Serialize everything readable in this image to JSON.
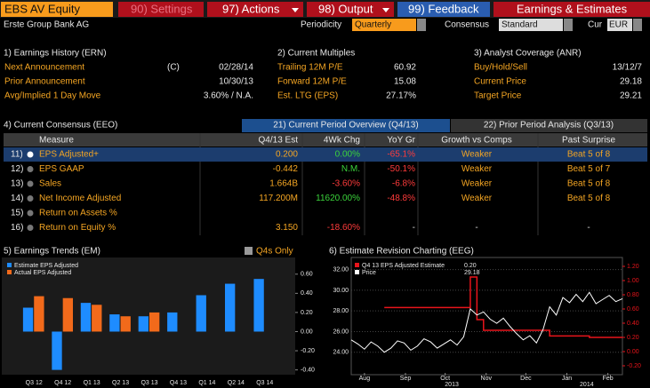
{
  "toolbar": {
    "ticker": "EBS AV Equity",
    "buttons": [
      "90) Settings",
      "97) Actions",
      "98) Output",
      "99) Feedback"
    ],
    "function_title": "Earnings & Estimates"
  },
  "company": "Erste Group Bank AG",
  "filters": {
    "periodicity_label": "Periodicity",
    "periodicity": "Quarterly",
    "consensus_label": "Consensus",
    "consensus": "Standard",
    "currency_label": "Cur",
    "currency": "EUR"
  },
  "earnings_history": {
    "title": "1) Earnings History (ERN)",
    "rows": [
      [
        "Next Announcement",
        "(C)",
        "02/28/14"
      ],
      [
        "Prior Announcement",
        "10/30/13"
      ],
      [
        "Avg/Implied 1 Day Move",
        "3.60% / N.A."
      ]
    ]
  },
  "current_multiples": {
    "title": "2) Current Multiples",
    "rows": [
      [
        "Trailing 12M P/E",
        "60.92"
      ],
      [
        "Forward 12M P/E",
        "15.08"
      ],
      [
        "Est. LTG (EPS)",
        "27.17%"
      ]
    ]
  },
  "analyst_coverage": {
    "title": "3) Analyst Coverage (ANR)",
    "rows": [
      [
        "Buy/Hold/Sell",
        "13/12/7"
      ],
      [
        "Current Price",
        "29.18"
      ],
      [
        "Target Price",
        "29.21"
      ]
    ]
  },
  "consensus": {
    "title": "4) Current Consensus (EEO)",
    "tabs": [
      "21) Current Period Overview (Q4/13)",
      "22) Prior Period Analysis (Q3/13)"
    ],
    "columns": [
      "Measure",
      "Q4/13 Est",
      "4Wk Chg",
      "YoY Gr",
      "Growth vs Comps",
      "Past Surprise"
    ],
    "rows": [
      [
        "11)",
        "EPS Adjusted+",
        "0.200",
        "0.00%",
        "-65.1%",
        "Weaker",
        "Beat 5 of 8"
      ],
      [
        "12)",
        "EPS GAAP",
        "-0.442",
        "N.M.",
        "-50.1%",
        "Weaker",
        "Beat 5 of 7"
      ],
      [
        "13)",
        "Sales",
        "1.664B",
        "-3.60%",
        "-6.8%",
        "Weaker",
        "Beat 5 of 8"
      ],
      [
        "14)",
        "Net Income Adjusted",
        "117.200M",
        "11620.00%",
        "-48.8%",
        "Weaker",
        "Beat 5 of 8"
      ],
      [
        "15)",
        "Return on Assets %"
      ],
      [
        "16)",
        "Return on Equity %",
        "3.150",
        "-18.60%",
        "-",
        "-",
        "-"
      ]
    ]
  },
  "earnings_trends": {
    "type": "bar",
    "title": "5) Earnings Trends (EM)",
    "toggle": "Q4s Only",
    "categories": [
      "Q3 12",
      "Q4 12",
      "Q1 13",
      "Q2 13",
      "Q3 13",
      "Q4 13",
      "Q1 14",
      "Q2 14",
      "Q3 14"
    ],
    "series": [
      {
        "name": "Estimate EPS Adjusted",
        "color": "#1e8cff",
        "values": [
          0.25,
          -0.4,
          0.3,
          0.18,
          0.16,
          0.2,
          0.38,
          0.5,
          0.55
        ]
      },
      {
        "name": "Actual EPS Adjusted",
        "color": "#f26a1b",
        "values": [
          0.37,
          0.35,
          0.28,
          0.16,
          0.2,
          null,
          null,
          null,
          null
        ]
      }
    ],
    "ylim": [
      -0.45,
      0.7
    ],
    "yticks": [
      {
        "value": 0.6,
        "label": "0.60"
      },
      {
        "value": 0.4,
        "label": "0.40"
      },
      {
        "value": 0.2,
        "label": "0.20"
      },
      {
        "value": 0,
        "label": "0.00"
      },
      {
        "value": -0.2,
        "label": "-0.20"
      },
      {
        "value": -0.4,
        "label": "-0.40"
      }
    ]
  },
  "revision_chart": {
    "type": "line",
    "title": "6) Estimate Revision Charting (EEG)",
    "x": [
      0,
      5,
      10,
      15,
      20,
      25,
      30,
      35,
      40,
      45,
      50,
      55,
      60,
      65,
      70,
      75,
      80,
      85,
      90,
      95,
      100,
      105,
      110,
      115,
      120,
      125,
      130,
      135,
      140,
      145,
      150,
      155,
      160,
      165,
      170,
      175,
      180,
      185,
      190,
      195,
      200,
      205
    ],
    "series": [
      {
        "name": "Q4 13 EPS Adjusted Estimate",
        "color": "#e8141b",
        "axis": "y2",
        "values": [
          null,
          null,
          null,
          null,
          null,
          0.62,
          0.62,
          0.62,
          0.62,
          0.62,
          0.62,
          0.62,
          0.62,
          0.62,
          0.62,
          0.62,
          0.62,
          0.62,
          1.05,
          0.45,
          0.3,
          0.3,
          0.3,
          0.3,
          0.3,
          0.3,
          0.3,
          0.3,
          0.3,
          0.3,
          0.22,
          0.22,
          0.22,
          0.22,
          0.22,
          0.22,
          0.2,
          0.2,
          0.2,
          0.2,
          0.2,
          0.2
        ]
      },
      {
        "name": "Price",
        "color": "#ffffff",
        "values": [
          25.2,
          24.8,
          24.3,
          25.0,
          24.6,
          24.0,
          24.4,
          25.1,
          24.9,
          24.2,
          24.6,
          25.3,
          25.0,
          24.4,
          24.8,
          25.2,
          24.7,
          25.5,
          28.2,
          27.6,
          27.9,
          27.2,
          26.8,
          27.3,
          26.5,
          25.8,
          25.2,
          25.6,
          24.9,
          26.2,
          28.4,
          27.6,
          29.3,
          28.8,
          29.6,
          28.9,
          29.8,
          28.7,
          29.1,
          29.5,
          28.9,
          29.18
        ]
      }
    ],
    "legend_values": [
      "0.20",
      "29.18"
    ],
    "xlim": [
      0,
      205
    ],
    "xticks": [
      {
        "value": 10,
        "label": "Aug"
      },
      {
        "value": 41,
        "label": "Sep"
      },
      {
        "value": 71,
        "label": "Oct"
      },
      {
        "value": 102,
        "label": "Nov"
      },
      {
        "value": 132,
        "label": "Dec"
      },
      {
        "value": 163,
        "label": "Jan"
      },
      {
        "value": 194,
        "label": "Feb"
      }
    ],
    "year_labels": [
      {
        "value": 76,
        "label": "2013"
      },
      {
        "value": 178,
        "label": "2014"
      }
    ],
    "ylim": [
      22,
      33
    ],
    "yticks": [
      {
        "value": 24,
        "label": "24.00"
      },
      {
        "value": 26,
        "label": "26.00"
      },
      {
        "value": 28,
        "label": "28.00"
      },
      {
        "value": 30,
        "label": "30.00"
      },
      {
        "value": 32,
        "label": "32.00"
      }
    ],
    "y2lim": [
      -0.3,
      1.3
    ],
    "y2ticks": [
      {
        "value": 1.2,
        "label": "1.20"
      },
      {
        "value": 1.0,
        "label": "1.00"
      },
      {
        "value": 0.8,
        "label": "0.80"
      },
      {
        "value": 0.6,
        "label": "0.60"
      },
      {
        "value": 0.4,
        "label": "0.40"
      },
      {
        "value": 0.2,
        "label": "0.20"
      },
      {
        "value": 0,
        "label": "0.00"
      },
      {
        "value": -0.2,
        "label": "-0.20"
      }
    ]
  }
}
